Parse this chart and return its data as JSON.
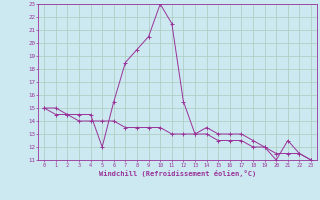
{
  "xlabel": "Windchill (Refroidissement éolien,°C)",
  "bg_color": "#cce8f0",
  "grid_color": "#aaccbb",
  "line_color": "#993399",
  "series1_x": [
    0,
    1,
    2,
    3,
    4,
    5,
    6,
    7,
    8,
    9,
    10,
    11,
    12,
    13,
    14,
    15,
    16,
    17,
    18,
    19,
    20,
    21,
    22,
    23
  ],
  "series1_y": [
    15.0,
    15.0,
    14.5,
    14.5,
    14.5,
    12.0,
    15.5,
    18.5,
    19.5,
    20.5,
    23.0,
    21.5,
    15.5,
    13.0,
    13.5,
    13.0,
    13.0,
    13.0,
    12.5,
    12.0,
    11.0,
    12.5,
    11.5,
    11.0
  ],
  "series2_x": [
    0,
    1,
    2,
    3,
    4,
    5,
    6,
    7,
    8,
    9,
    10,
    11,
    12,
    13,
    14,
    15,
    16,
    17,
    18,
    19,
    20,
    21,
    22,
    23
  ],
  "series2_y": [
    15.0,
    14.5,
    14.5,
    14.0,
    14.0,
    14.0,
    14.0,
    13.5,
    13.5,
    13.5,
    13.5,
    13.0,
    13.0,
    13.0,
    13.0,
    12.5,
    12.5,
    12.5,
    12.0,
    12.0,
    11.5,
    11.5,
    11.5,
    11.0
  ],
  "ylim": [
    11,
    23
  ],
  "xlim": [
    -0.5,
    23.5
  ],
  "yticks": [
    11,
    12,
    13,
    14,
    15,
    16,
    17,
    18,
    19,
    20,
    21,
    22,
    23
  ],
  "xticks": [
    0,
    1,
    2,
    3,
    4,
    5,
    6,
    7,
    8,
    9,
    10,
    11,
    12,
    13,
    14,
    15,
    16,
    17,
    18,
    19,
    20,
    21,
    22,
    23
  ]
}
